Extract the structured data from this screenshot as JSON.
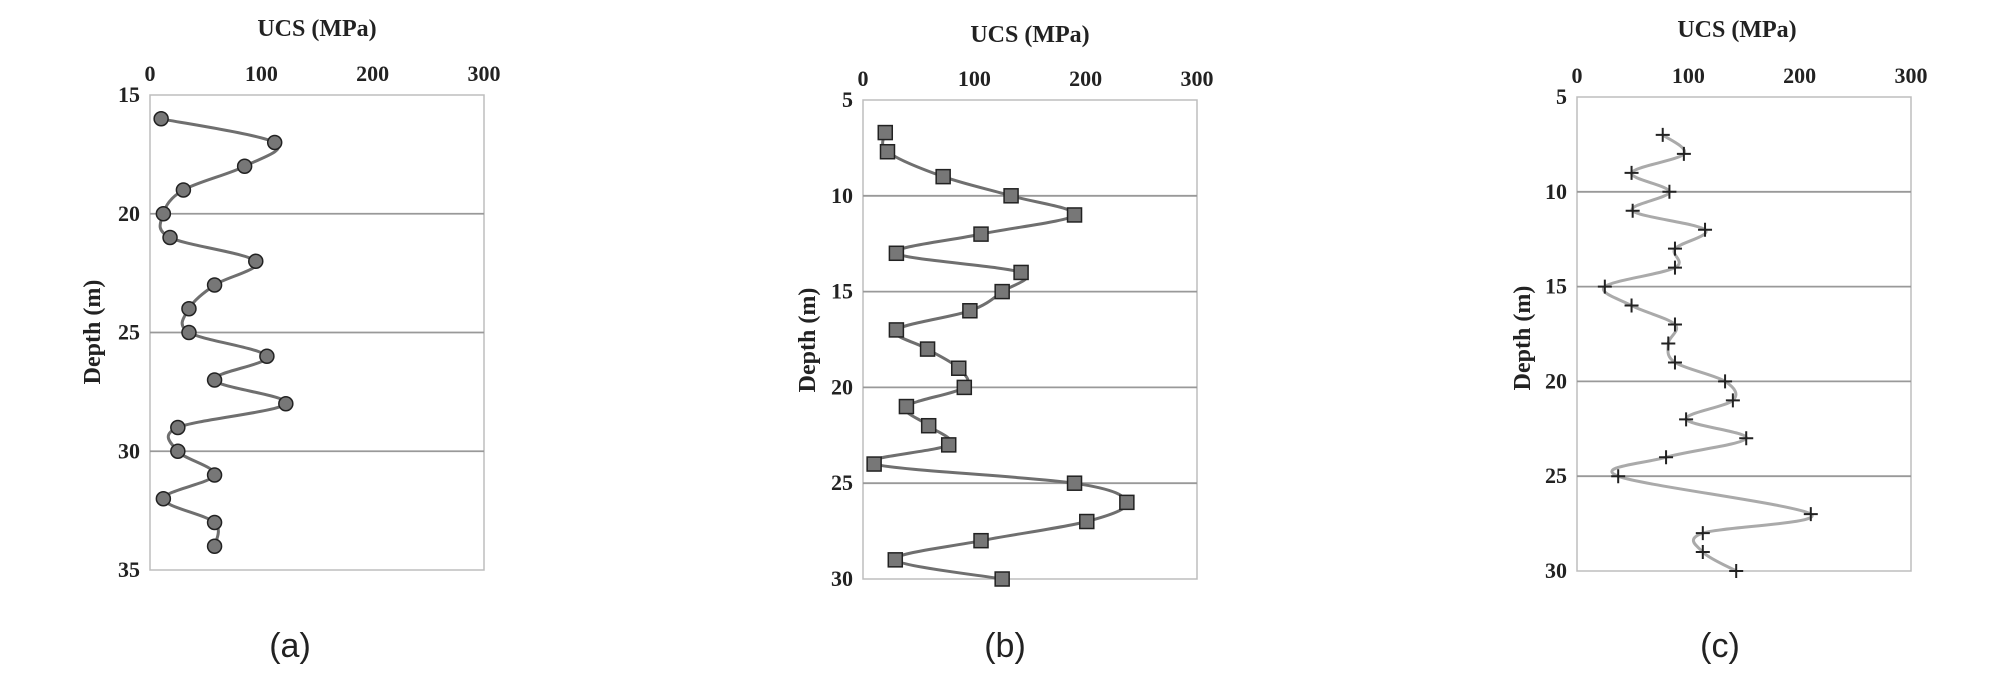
{
  "chart_data": [
    {
      "type": "line",
      "caption": "(a)",
      "xlabel": "UCS (MPa)",
      "ylabel": "Depth (m)",
      "xlim": [
        0,
        300
      ],
      "ylim": [
        15,
        35
      ],
      "xticks": [
        0,
        100,
        200,
        300
      ],
      "yticks": [
        15,
        20,
        25,
        30,
        35
      ],
      "gridlines_y": [
        20,
        25,
        30
      ],
      "marker": "circle",
      "line_color": "#6f6f6f",
      "marker_color": "#777777",
      "series": [
        {
          "name": "UCS",
          "points": [
            [
              10,
              16
            ],
            [
              112,
              17
            ],
            [
              85,
              18
            ],
            [
              30,
              19
            ],
            [
              12,
              20
            ],
            [
              18,
              21
            ],
            [
              95,
              22
            ],
            [
              58,
              23
            ],
            [
              35,
              24
            ],
            [
              35,
              25
            ],
            [
              105,
              26
            ],
            [
              58,
              27
            ],
            [
              122,
              28
            ],
            [
              25,
              29
            ],
            [
              25,
              30
            ],
            [
              58,
              31
            ],
            [
              12,
              32
            ],
            [
              58,
              33
            ],
            [
              58,
              34
            ]
          ]
        }
      ]
    },
    {
      "type": "line",
      "caption": "(b)",
      "xlabel": "UCS (MPa)",
      "ylabel": "Depth (m)",
      "xlim": [
        0,
        300
      ],
      "ylim": [
        5,
        30
      ],
      "xticks": [
        0,
        100,
        200,
        300
      ],
      "yticks": [
        5,
        10,
        15,
        20,
        25,
        30
      ],
      "gridlines_y": [
        10,
        15,
        20,
        25
      ],
      "marker": "square",
      "line_color": "#6f6f6f",
      "marker_color": "#777777",
      "series": [
        {
          "name": "UCS",
          "points": [
            [
              20,
              6.7
            ],
            [
              22,
              7.7
            ],
            [
              72,
              9
            ],
            [
              133,
              10
            ],
            [
              190,
              11
            ],
            [
              106,
              12
            ],
            [
              30,
              13
            ],
            [
              142,
              14
            ],
            [
              125,
              15
            ],
            [
              96,
              16
            ],
            [
              30,
              17
            ],
            [
              58,
              18
            ],
            [
              86,
              19
            ],
            [
              91,
              20
            ],
            [
              39,
              21
            ],
            [
              59,
              22
            ],
            [
              77,
              23
            ],
            [
              10,
              24
            ],
            [
              190,
              25
            ],
            [
              237,
              26
            ],
            [
              201,
              27
            ],
            [
              106,
              28
            ],
            [
              29,
              29
            ],
            [
              125,
              30
            ]
          ]
        }
      ]
    },
    {
      "type": "line",
      "caption": "(c)",
      "xlabel": "UCS (MPa)",
      "ylabel": "Depth (m)",
      "xlim": [
        0,
        300
      ],
      "ylim": [
        5,
        30
      ],
      "xticks": [
        0,
        100,
        200,
        300
      ],
      "yticks": [
        5,
        10,
        15,
        20,
        25,
        30
      ],
      "gridlines_y": [
        10,
        15,
        20,
        25
      ],
      "marker": "plus",
      "line_color": "#aaaaaa",
      "marker_color": "#222222",
      "series": [
        {
          "name": "UCS",
          "points": [
            [
              77,
              7
            ],
            [
              96,
              8
            ],
            [
              49,
              9
            ],
            [
              83,
              10
            ],
            [
              50,
              11
            ],
            [
              115,
              12
            ],
            [
              88,
              13
            ],
            [
              88,
              14
            ],
            [
              25,
              15
            ],
            [
              49,
              16
            ],
            [
              88,
              17
            ],
            [
              82,
              18
            ],
            [
              88,
              19
            ],
            [
              133,
              20
            ],
            [
              140,
              21
            ],
            [
              98,
              22
            ],
            [
              152,
              23
            ],
            [
              80,
              24
            ],
            [
              37,
              25
            ],
            [
              210,
              27
            ],
            [
              113,
              28
            ],
            [
              113,
              29
            ],
            [
              143,
              30
            ]
          ]
        }
      ]
    }
  ]
}
